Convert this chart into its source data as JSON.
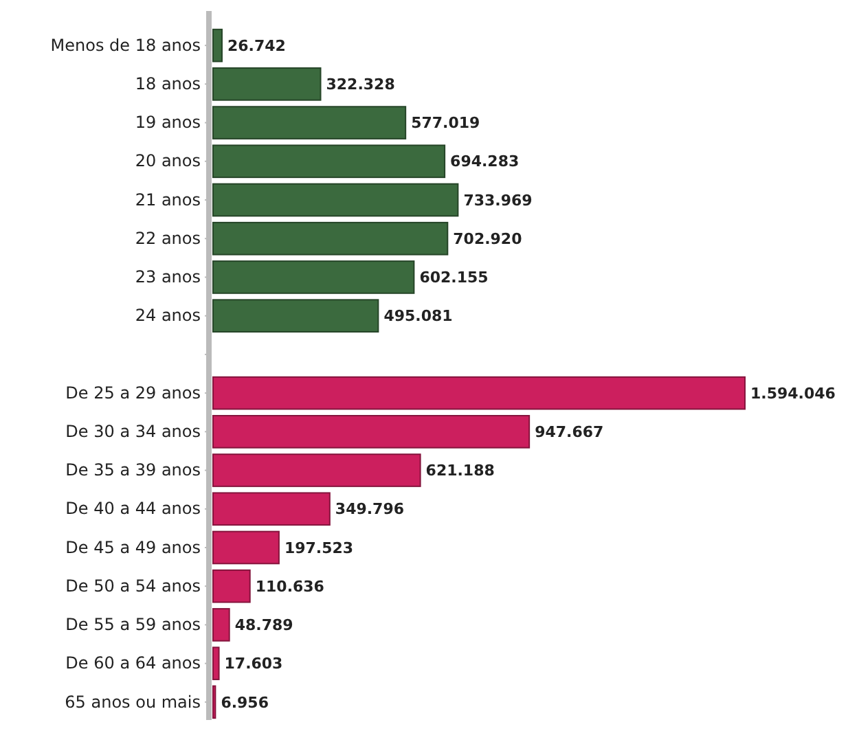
{
  "chart_data": {
    "type": "bar",
    "orientation": "horizontal",
    "categories": [
      "Menos de 18 anos",
      "18 anos",
      "19 anos",
      "20 anos",
      "21 anos",
      "22 anos",
      "23 anos",
      "24 anos",
      null,
      "De 25 a 29 anos",
      "De 30 a 34 anos",
      "De 35 a 39 anos",
      "De 40 a 44 anos",
      "De 45 a 49 anos",
      "De 50 a 54 anos",
      "De 55 a 59 anos",
      "De 60 a 64 anos",
      "65 anos ou mais"
    ],
    "values": [
      26742,
      322328,
      577019,
      694283,
      733969,
      702920,
      602155,
      495081,
      null,
      1594046,
      947667,
      621188,
      349796,
      197523,
      110636,
      48789,
      17603,
      6956
    ],
    "value_labels": [
      "26.742",
      "322.328",
      "577.019",
      "694.283",
      "733.969",
      "702.920",
      "602.155",
      "495.081",
      null,
      "1.594.046",
      "947.667",
      "621.188",
      "349.796",
      "197.523",
      "110.636",
      "48.789",
      "17.603",
      "6.956"
    ],
    "colors": [
      "#3b6a3e",
      "#3b6a3e",
      "#3b6a3e",
      "#3b6a3e",
      "#3b6a3e",
      "#3b6a3e",
      "#3b6a3e",
      "#3b6a3e",
      null,
      "#cc1f5e",
      "#cc1f5e",
      "#cc1f5e",
      "#cc1f5e",
      "#cc1f5e",
      "#cc1f5e",
      "#cc1f5e",
      "#cc1f5e",
      "#cc1f5e"
    ]
  }
}
